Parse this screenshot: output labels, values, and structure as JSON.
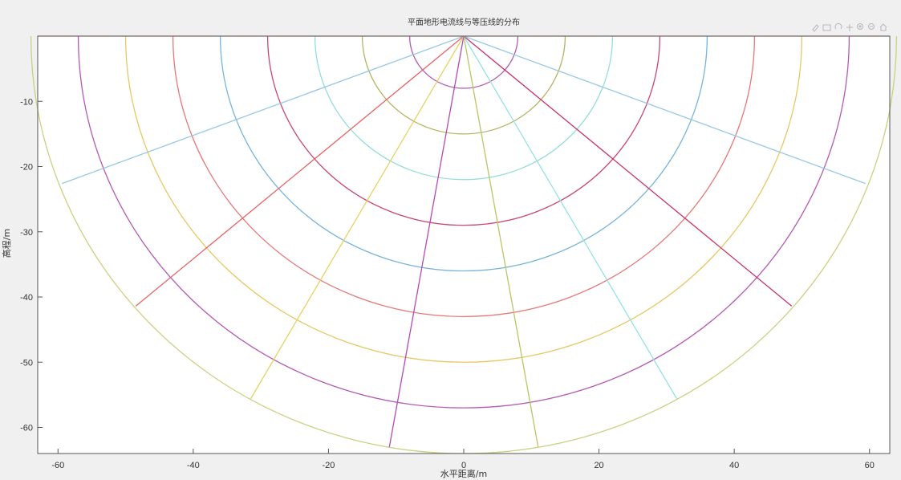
{
  "chart_data": {
    "type": "line",
    "title": "平面地形电流线与等压线的分布",
    "xlabel": "水平距离/m",
    "ylabel": "高程/m",
    "xlim": [
      -63,
      63
    ],
    "ylim": [
      -64,
      0
    ],
    "xticks": [
      -60,
      -40,
      -20,
      0,
      20,
      40,
      60
    ],
    "yticks": [
      -10,
      -20,
      -30,
      -40,
      -50,
      -60
    ],
    "grid": false,
    "legend": "none",
    "series": [
      {
        "kind": "equipotential",
        "radius": 8,
        "color": "#b45ab4"
      },
      {
        "kind": "equipotential",
        "radius": 15,
        "color": "#b4b464"
      },
      {
        "kind": "equipotential",
        "radius": 22,
        "color": "#96dcdc"
      },
      {
        "kind": "equipotential",
        "radius": 29,
        "color": "#c84678"
      },
      {
        "kind": "equipotential",
        "radius": 36,
        "color": "#78b4dc"
      },
      {
        "kind": "equipotential",
        "radius": 43,
        "color": "#e67878"
      },
      {
        "kind": "equipotential",
        "radius": 50,
        "color": "#e6c864"
      },
      {
        "kind": "equipotential",
        "radius": 57,
        "color": "#b45ab4"
      },
      {
        "kind": "equipotential",
        "radius": 64,
        "color": "#c8d282"
      },
      {
        "kind": "current",
        "x": [
          0,
          -59.4
        ],
        "y": [
          0,
          -22.6
        ],
        "color": "#96c8e6"
      },
      {
        "kind": "current",
        "x": [
          0,
          -48.5
        ],
        "y": [
          0,
          -41.4
        ],
        "color": "#e66464"
      },
      {
        "kind": "current",
        "x": [
          0,
          -31.5
        ],
        "y": [
          0,
          -55.6
        ],
        "color": "#e6d264"
      },
      {
        "kind": "current",
        "x": [
          0,
          -11.0
        ],
        "y": [
          0,
          -63.0
        ],
        "color": "#b44bb4"
      },
      {
        "kind": "current",
        "x": [
          0,
          11.0
        ],
        "y": [
          0,
          -63.0
        ],
        "color": "#b4c864"
      },
      {
        "kind": "current",
        "x": [
          0,
          31.5
        ],
        "y": [
          0,
          -55.6
        ],
        "color": "#96e1e6"
      },
      {
        "kind": "current",
        "x": [
          0,
          48.5
        ],
        "y": [
          0,
          -41.4
        ],
        "color": "#c8326e"
      },
      {
        "kind": "current",
        "x": [
          0,
          59.4
        ],
        "y": [
          0,
          -22.6
        ],
        "color": "#96c8e6"
      },
      {
        "kind": "surface",
        "x": [
          -63,
          63
        ],
        "y": [
          0,
          0
        ],
        "color": "#e6b4a0"
      }
    ]
  },
  "toolbar": {
    "icons": [
      "brush-icon",
      "data-tip-icon",
      "rotate-icon",
      "pan-icon",
      "zoom-in-icon",
      "zoom-out-icon",
      "home-icon"
    ]
  },
  "colors": {
    "figure_background": "#f0f0f0",
    "axes_background": "#ffffff",
    "axes_line": "#555555"
  }
}
